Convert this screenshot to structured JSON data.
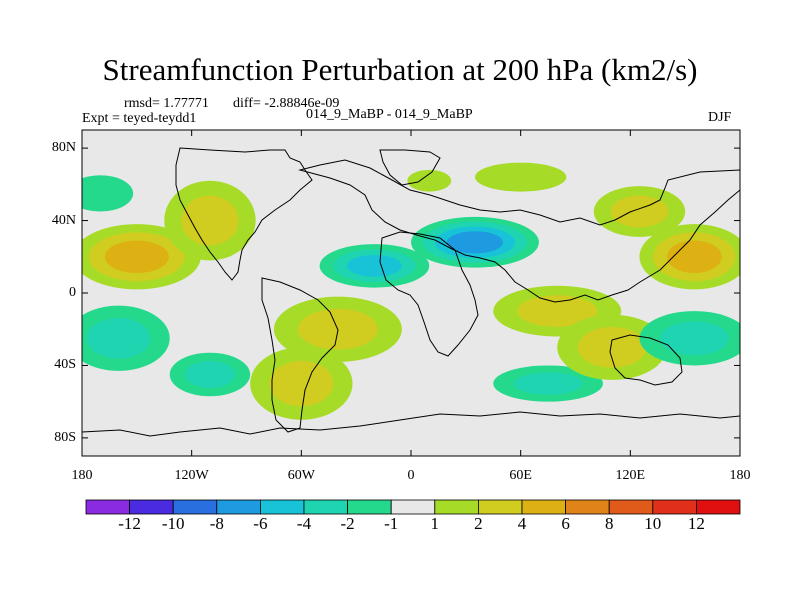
{
  "title": "Streamfunction Perturbation at 200 hPa (km2/s)",
  "stats": {
    "rmsd": "rmsd= 1.77771",
    "diff": "diff= -2.88846e-09",
    "expt": "Expt = teyed-teydd1",
    "case": "014_9_MaBP - 014_9_MaBP",
    "season": "DJF"
  },
  "chart_data": {
    "type": "heatmap",
    "title": "Streamfunction Perturbation at 200 hPa (km2/s)",
    "subtitle": "014_9_MaBP - 014_9_MaBP",
    "xlabel": "",
    "ylabel": "",
    "xlim": [
      -180,
      180
    ],
    "ylim": [
      -90,
      90
    ],
    "x_ticks": [
      "180",
      "120W",
      "60W",
      "0",
      "60E",
      "120E",
      "180"
    ],
    "x_tick_values": [
      -180,
      -120,
      -60,
      0,
      60,
      120,
      180
    ],
    "y_ticks": [
      "80N",
      "40N",
      "0",
      "40S",
      "80S"
    ],
    "y_tick_values": [
      80,
      40,
      0,
      -40,
      -80
    ],
    "levels": [
      -12,
      -10,
      -8,
      -6,
      -4,
      -2,
      -1,
      1,
      2,
      4,
      6,
      8,
      10,
      12
    ],
    "level_labels": [
      "-12",
      "-10",
      "-8",
      "-6",
      "-4",
      "-2",
      "-1",
      "1",
      "2",
      "4",
      "6",
      "8",
      "10",
      "12"
    ],
    "colors": [
      "#8a2be2",
      "#4b2be0",
      "#2a6fe0",
      "#1e9ae0",
      "#18c3d8",
      "#1fd4b0",
      "#25d98c",
      "#e8e8e8",
      "#a6dc28",
      "#d0cd20",
      "#ddb014",
      "#e0841a",
      "#e05a1a",
      "#e0301a",
      "#e01010"
    ],
    "features": [
      {
        "name": "central-pacific-south-negative",
        "lon": -160,
        "lat": -25,
        "rlon": 28,
        "rlat": 18,
        "value": -3.5
      },
      {
        "name": "north-pacific-west-positive",
        "lon": -150,
        "lat": 20,
        "rlon": 35,
        "rlat": 18,
        "value": 4.5
      },
      {
        "name": "north-pacific-east-positive",
        "lon": -110,
        "lat": 40,
        "rlon": 25,
        "rlat": 22,
        "value": 3.5
      },
      {
        "name": "pacific-north-negative",
        "lon": -170,
        "lat": 55,
        "rlon": 18,
        "rlat": 10,
        "value": -1.5
      },
      {
        "name": "south-pacific-negative",
        "lon": -110,
        "lat": -45,
        "rlon": 22,
        "rlat": 12,
        "value": -3.0
      },
      {
        "name": "south-atlantic-positive",
        "lon": -40,
        "lat": -20,
        "rlon": 35,
        "rlat": 18,
        "value": 3.5
      },
      {
        "name": "south-america-positive",
        "lon": -60,
        "lat": -50,
        "rlon": 28,
        "rlat": 20,
        "value": 3.0
      },
      {
        "name": "atlantic-africa-negative",
        "lon": -20,
        "lat": 15,
        "rlon": 30,
        "rlat": 12,
        "value": -4.0
      },
      {
        "name": "middle-east-negative",
        "lon": 35,
        "lat": 28,
        "rlon": 35,
        "rlat": 14,
        "value": -6.0
      },
      {
        "name": "indian-ocean-positive",
        "lon": 80,
        "lat": -10,
        "rlon": 35,
        "rlat": 14,
        "value": 3.0
      },
      {
        "name": "west-pacific-negative",
        "lon": 75,
        "lat": -50,
        "rlon": 30,
        "rlat": 10,
        "value": -2.0
      },
      {
        "name": "australia-positive",
        "lon": 110,
        "lat": -30,
        "rlon": 30,
        "rlat": 18,
        "value": 3.0
      },
      {
        "name": "north-pacific-east-positive-2",
        "lon": 155,
        "lat": 20,
        "rlon": 30,
        "rlat": 18,
        "value": 4.0
      },
      {
        "name": "east-asia-positive",
        "lon": 125,
        "lat": 45,
        "rlon": 25,
        "rlat": 14,
        "value": 3.0
      },
      {
        "name": "south-pacific-east-negative",
        "lon": 155,
        "lat": -25,
        "rlon": 30,
        "rlat": 15,
        "value": -3.0
      },
      {
        "name": "arctic-positive",
        "lon": 10,
        "lat": 62,
        "rlon": 12,
        "rlat": 6,
        "value": 1.5
      },
      {
        "name": "north-atlantic-positive",
        "lon": 60,
        "lat": 64,
        "rlon": 25,
        "rlat": 8,
        "value": 1.5
      }
    ]
  },
  "colorbar": {
    "labels": [
      "-12",
      "-10",
      "-8",
      "-6",
      "-4",
      "-2",
      "-1",
      "1",
      "2",
      "4",
      "6",
      "8",
      "10",
      "12"
    ]
  }
}
